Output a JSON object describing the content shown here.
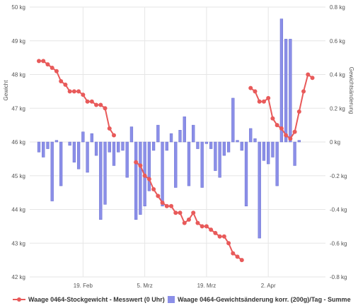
{
  "chart_data": {
    "type": "bar+line",
    "ylabel_left": "Gewicht",
    "ylabel_right": "Gewichtsänderung",
    "y_left_ticks": [
      "42 kg",
      "43 kg",
      "44 kg",
      "45 kg",
      "46 kg",
      "47 kg",
      "48 kg",
      "49 kg",
      "50 kg"
    ],
    "y_right_ticks": [
      "-0.8 kg",
      "-0.6 kg",
      "-0.4 kg",
      "-0.2 kg",
      "0 kg",
      "0.2 kg",
      "0.4 kg",
      "0.6 kg",
      "0.8 kg"
    ],
    "ylim_left": [
      42,
      50
    ],
    "ylim_right": [
      -0.8,
      0.8
    ],
    "x_ticks": [
      {
        "label": "19. Feb",
        "day": 10
      },
      {
        "label": "5. Mrz",
        "day": 24
      },
      {
        "label": "19. Mrz",
        "day": 38
      },
      {
        "label": "2. Apr",
        "day": 52
      }
    ],
    "xlim_days": [
      0,
      64
    ],
    "series": [
      {
        "name": "Waage 0464-Stockgewicht - Messwert (0 Uhr)",
        "type": "line",
        "axis": "left",
        "color": "#e85a5a",
        "segments": [
          [
            [
              0,
              48.4
            ],
            [
              1,
              48.4
            ],
            [
              2,
              48.3
            ],
            [
              3,
              48.2
            ],
            [
              4,
              48.1
            ],
            [
              5,
              47.8
            ],
            [
              6,
              47.7
            ],
            [
              7,
              47.5
            ],
            [
              8,
              47.5
            ],
            [
              9,
              47.5
            ],
            [
              10,
              47.4
            ],
            [
              11,
              47.2
            ],
            [
              12,
              47.2
            ],
            [
              13,
              47.1
            ],
            [
              14,
              47.1
            ],
            [
              15,
              47.0
            ],
            [
              16,
              46.4
            ],
            [
              17,
              46.2
            ]
          ],
          [
            [
              22,
              45.4
            ],
            [
              23,
              45.3
            ],
            [
              24,
              45.0
            ],
            [
              25,
              44.9
            ],
            [
              26,
              44.6
            ],
            [
              27,
              44.4
            ],
            [
              28,
              44.2
            ],
            [
              29,
              44.1
            ],
            [
              30,
              44.1
            ],
            [
              31,
              43.9
            ],
            [
              32,
              43.9
            ],
            [
              33,
              43.6
            ],
            [
              34,
              43.7
            ],
            [
              35,
              43.9
            ],
            [
              36,
              43.6
            ],
            [
              37,
              43.5
            ],
            [
              38,
              43.5
            ],
            [
              39,
              43.4
            ],
            [
              40,
              43.3
            ],
            [
              41,
              43.2
            ],
            [
              42,
              43.2
            ],
            [
              43,
              43.0
            ],
            [
              44,
              42.7
            ],
            [
              45,
              42.6
            ],
            [
              46,
              42.5
            ]
          ],
          [
            [
              48,
              47.6
            ],
            [
              49,
              47.5
            ],
            [
              50,
              47.2
            ],
            [
              51,
              47.2
            ],
            [
              52,
              47.3
            ],
            [
              53,
              46.7
            ],
            [
              54,
              46.5
            ],
            [
              55,
              46.4
            ],
            [
              56,
              46.2
            ],
            [
              57,
              46.1
            ],
            [
              58,
              46.3
            ],
            [
              59,
              46.9
            ],
            [
              60,
              47.5
            ],
            [
              61,
              48.0
            ],
            [
              62,
              47.9
            ]
          ]
        ]
      },
      {
        "name": "Waage 0464-Gewichtsänderung korr. (200g)/Tag - Summe",
        "type": "bar",
        "axis": "right",
        "color": "#8b8fe8",
        "values": [
          [
            0,
            -0.06
          ],
          [
            1,
            -0.09
          ],
          [
            2,
            -0.04
          ],
          [
            3,
            -0.35
          ],
          [
            4,
            0.01
          ],
          [
            5,
            -0.26
          ],
          [
            7,
            -0.02
          ],
          [
            8,
            -0.12
          ],
          [
            9,
            -0.16
          ],
          [
            10,
            0.06
          ],
          [
            11,
            -0.18
          ],
          [
            12,
            0.05
          ],
          [
            13,
            -0.08
          ],
          [
            14,
            -0.46
          ],
          [
            15,
            -0.37
          ],
          [
            16,
            -0.06
          ],
          [
            17,
            -0.14
          ],
          [
            18,
            -0.06
          ],
          [
            19,
            -0.05
          ],
          [
            20,
            -0.21
          ],
          [
            21,
            0.09
          ],
          [
            22,
            -0.46
          ],
          [
            23,
            -0.43
          ],
          [
            24,
            -0.38
          ],
          [
            25,
            -0.29
          ],
          [
            26,
            -0.05
          ],
          [
            27,
            0.1
          ],
          [
            28,
            -0.38
          ],
          [
            29,
            -0.05
          ],
          [
            30,
            0.05
          ],
          [
            31,
            -0.27
          ],
          [
            32,
            0.07
          ],
          [
            33,
            0.15
          ],
          [
            34,
            -0.26
          ],
          [
            35,
            0.1
          ],
          [
            36,
            -0.04
          ],
          [
            37,
            -0.27
          ],
          [
            38,
            -0.01
          ],
          [
            39,
            -0.04
          ],
          [
            40,
            -0.17
          ],
          [
            41,
            -0.21
          ],
          [
            42,
            -0.08
          ],
          [
            43,
            -0.06
          ],
          [
            44,
            0.26
          ],
          [
            45,
            0.01
          ],
          [
            46,
            -0.05
          ],
          [
            47,
            -0.38
          ],
          [
            48,
            0.08
          ],
          [
            49,
            0.02
          ],
          [
            50,
            -0.57
          ],
          [
            51,
            -0.11
          ],
          [
            52,
            -0.13
          ],
          [
            53,
            -0.09
          ],
          [
            54,
            -0.26
          ],
          [
            55,
            0.73
          ],
          [
            56,
            0.61
          ],
          [
            57,
            0.61
          ],
          [
            58,
            -0.14
          ],
          [
            59,
            0.01
          ]
        ]
      }
    ],
    "legend": {
      "position": "bottom",
      "entries": [
        "Waage 0464-Stockgewicht - Messwert (0 Uhr)",
        "Waage 0464-Gewichtsänderung korr. (200g)/Tag - Summe"
      ]
    },
    "grid": true
  }
}
